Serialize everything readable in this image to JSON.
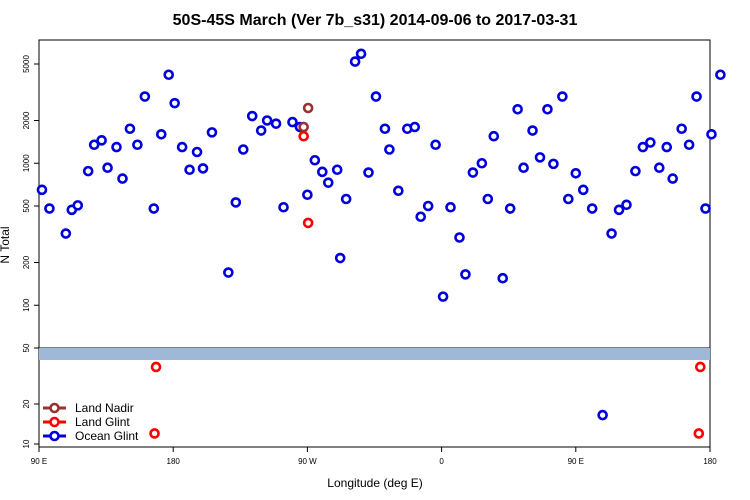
{
  "chart_data": {
    "type": "scatter",
    "title": "50S-45S March (Ver 7b_s31)   2014-09-06 to 2017-03-31",
    "xlabel": "Longitude (deg E)",
    "ylabel": "N Total",
    "x_ticks": [
      {
        "value": 90,
        "label": "90 E"
      },
      {
        "value": 180,
        "label": "180"
      },
      {
        "value": 270,
        "label": "90 W"
      },
      {
        "value": 360,
        "label": "0"
      },
      {
        "value": 450,
        "label": "90 E"
      },
      {
        "value": 540,
        "label": "180"
      }
    ],
    "y_ticks_top": [
      {
        "value": 50,
        "label": "50"
      },
      {
        "value": 100,
        "label": "100"
      },
      {
        "value": 200,
        "label": "200"
      },
      {
        "value": 500,
        "label": "500"
      },
      {
        "value": 1000,
        "label": "1000"
      },
      {
        "value": 2000,
        "label": "2000"
      },
      {
        "value": 5000,
        "label": "5000"
      }
    ],
    "y_ticks_bottom": [
      {
        "value": 10,
        "label": "10"
      },
      {
        "value": 20,
        "label": "20"
      }
    ],
    "xlim": [
      90,
      540
    ],
    "ylim": [
      10,
      9000
    ],
    "y_scale": "log",
    "grid": false,
    "legend_position": "bottom-left",
    "series": [
      {
        "name": "Land Nadir",
        "color": "#993333",
        "points": [
          [
            267.5,
            1800
          ],
          [
            270.5,
            2450
          ]
        ]
      },
      {
        "name": "Land Glint",
        "color": "#ff0000",
        "points": [
          [
            267.5,
            1550
          ],
          [
            270.5,
            380
          ],
          [
            168.5,
            38
          ],
          [
            167.5,
            12
          ],
          [
            533.5,
            38
          ],
          [
            532.5,
            12
          ]
        ]
      },
      {
        "name": "Ocean Glint",
        "color": "#0000dd",
        "points": [
          [
            92,
            650
          ],
          [
            97,
            480
          ],
          [
            108,
            320
          ],
          [
            112,
            470
          ],
          [
            116,
            505
          ],
          [
            123,
            880
          ],
          [
            127,
            1350
          ],
          [
            132,
            1450
          ],
          [
            136,
            930
          ],
          [
            142,
            1300
          ],
          [
            146,
            780
          ],
          [
            151,
            1750
          ],
          [
            156,
            1350
          ],
          [
            161,
            2950
          ],
          [
            167,
            480
          ],
          [
            172,
            1600
          ],
          [
            177,
            4200
          ],
          [
            181,
            2650
          ],
          [
            186,
            1300
          ],
          [
            191,
            900
          ],
          [
            196,
            1200
          ],
          [
            200,
            920
          ],
          [
            206,
            1650
          ],
          [
            217,
            170
          ],
          [
            222,
            530
          ],
          [
            227,
            1250
          ],
          [
            233,
            2150
          ],
          [
            239,
            1700
          ],
          [
            243,
            2000
          ],
          [
            249,
            1900
          ],
          [
            254,
            490
          ],
          [
            260,
            1950
          ],
          [
            265,
            1800
          ],
          [
            270,
            600
          ],
          [
            275,
            1050
          ],
          [
            280,
            870
          ],
          [
            284,
            730
          ],
          [
            290,
            900
          ],
          [
            292,
            215
          ],
          [
            296,
            560
          ],
          [
            302,
            5200
          ],
          [
            306,
            5900
          ],
          [
            311,
            860
          ],
          [
            316,
            2950
          ],
          [
            322,
            1750
          ],
          [
            325,
            1250
          ],
          [
            331,
            640
          ],
          [
            337,
            1750
          ],
          [
            342,
            1800
          ],
          [
            346,
            420
          ],
          [
            351,
            500
          ],
          [
            356,
            1350
          ],
          [
            361,
            115
          ],
          [
            366,
            490
          ],
          [
            372,
            300
          ],
          [
            376,
            165
          ],
          [
            381,
            860
          ],
          [
            387,
            1000
          ],
          [
            391,
            560
          ],
          [
            395,
            1550
          ],
          [
            401,
            155
          ],
          [
            406,
            480
          ],
          [
            411,
            2400
          ],
          [
            415,
            930
          ],
          [
            421,
            1700
          ],
          [
            426,
            1100
          ],
          [
            431,
            2400
          ],
          [
            435,
            990
          ],
          [
            441,
            2950
          ],
          [
            445,
            560
          ],
          [
            450,
            850
          ],
          [
            455,
            650
          ],
          [
            461,
            480
          ],
          [
            468,
            16.5
          ],
          [
            474,
            320
          ],
          [
            479,
            470
          ],
          [
            484,
            510
          ],
          [
            490,
            880
          ],
          [
            495,
            1300
          ],
          [
            500,
            1400
          ],
          [
            506,
            930
          ],
          [
            511,
            1300
          ],
          [
            515,
            780
          ],
          [
            521,
            1750
          ],
          [
            526,
            1350
          ],
          [
            531,
            2950
          ],
          [
            537,
            480
          ],
          [
            541,
            1600
          ],
          [
            547,
            4200
          ]
        ]
      }
    ]
  },
  "legend": {
    "items": [
      {
        "label": "Land Nadir"
      },
      {
        "label": "Land Glint"
      },
      {
        "label": "Ocean Glint"
      }
    ]
  }
}
